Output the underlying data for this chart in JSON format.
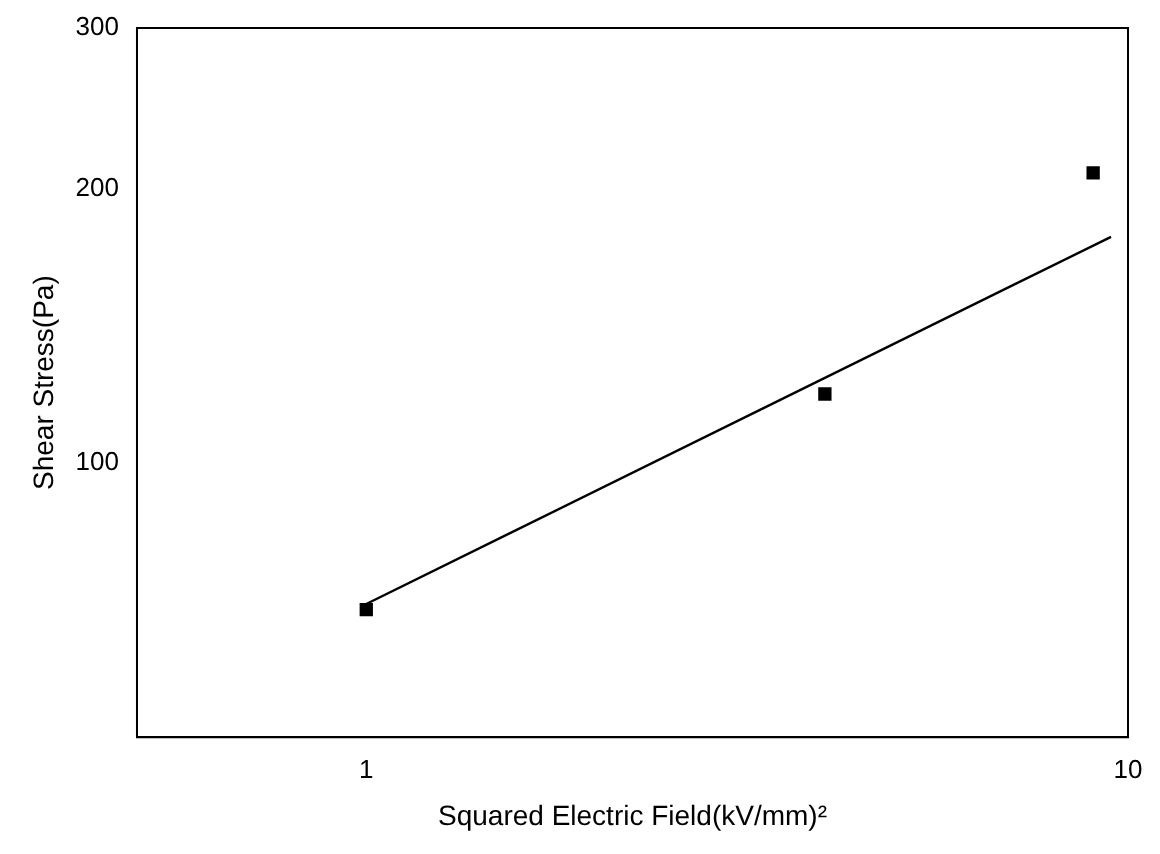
{
  "chart_data": {
    "type": "scatter",
    "xlabel": "Squared Electric Field(kV/mm)²",
    "ylabel": "Shear Stress(Pa)",
    "log": "xy",
    "xlim": [
      0.5,
      10
    ],
    "xticks": [
      1,
      10
    ],
    "ylim": [
      50,
      300
    ],
    "yticks": [
      100,
      200,
      300
    ],
    "grid": false,
    "legend": false,
    "marker": "square",
    "series": [
      {
        "type": "scatter",
        "color": "#000000",
        "x": [
          1,
          4,
          9
        ],
        "values": [
          69,
          119,
          208
        ]
      },
      {
        "type": "line",
        "color": "#000000",
        "x": [
          1,
          9.5
        ],
        "values": [
          70,
          177
        ],
        "marker": "none",
        "line_style": "solid"
      }
    ]
  }
}
